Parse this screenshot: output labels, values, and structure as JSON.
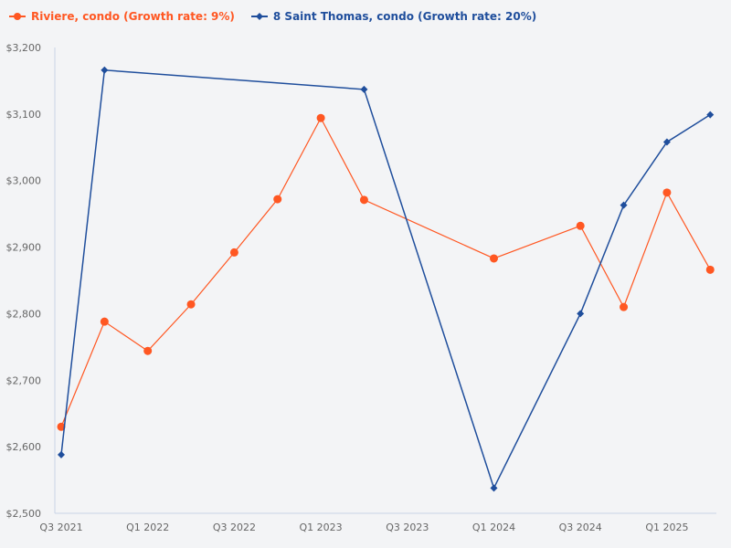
{
  "chart_data": {
    "type": "line",
    "title": "",
    "xlabel": "",
    "ylabel": "",
    "ylim": [
      2500,
      3200
    ],
    "yticks": [
      2500,
      2600,
      2700,
      2800,
      2900,
      3000,
      3100,
      3200
    ],
    "ytick_labels": [
      "$2,500",
      "$2,600",
      "$2,700",
      "$2,800",
      "$2,900",
      "$3,000",
      "$3,100",
      "$3,200"
    ],
    "x": [
      "Q3 2021",
      "Q4 2021",
      "Q1 2022",
      "Q2 2022",
      "Q3 2022",
      "Q4 2022",
      "Q1 2023",
      "Q2 2023",
      "Q3 2023",
      "Q4 2023",
      "Q1 2024",
      "Q2 2024",
      "Q3 2024",
      "Q4 2024",
      "Q1 2025",
      "Q2 2025"
    ],
    "xtick_labels": [
      "Q3 2021",
      "Q1 2022",
      "Q3 2022",
      "Q1 2023",
      "Q3 2023",
      "Q1 2024",
      "Q3 2024",
      "Q1 2025"
    ],
    "grid": false,
    "legend_position": "top-left",
    "series": [
      {
        "name": "Riviere, condo (Growth rate: 9%)",
        "color": "#ff5722",
        "marker": "circle",
        "points": [
          {
            "x": "Q3 2021",
            "y": 2630
          },
          {
            "x": "Q4 2021",
            "y": 2788
          },
          {
            "x": "Q1 2022",
            "y": 2744
          },
          {
            "x": "Q2 2022",
            "y": 2814
          },
          {
            "x": "Q3 2022",
            "y": 2892
          },
          {
            "x": "Q4 2022",
            "y": 2972
          },
          {
            "x": "Q1 2023",
            "y": 3094
          },
          {
            "x": "Q2 2023",
            "y": 2971
          },
          {
            "x": "Q1 2024",
            "y": 2883
          },
          {
            "x": "Q3 2024",
            "y": 2932
          },
          {
            "x": "Q4 2024",
            "y": 2810
          },
          {
            "x": "Q1 2025",
            "y": 2982
          },
          {
            "x": "Q2 2025",
            "y": 2866
          }
        ]
      },
      {
        "name": "8 Saint Thomas, condo (Growth rate: 20%)",
        "color": "#1f4e9c",
        "marker": "diamond",
        "points": [
          {
            "x": "Q3 2021",
            "y": 2588
          },
          {
            "x": "Q4 2021",
            "y": 3166
          },
          {
            "x": "Q2 2023",
            "y": 3137
          },
          {
            "x": "Q1 2024",
            "y": 2538
          },
          {
            "x": "Q3 2024",
            "y": 2800
          },
          {
            "x": "Q4 2024",
            "y": 2963
          },
          {
            "x": "Q1 2025",
            "y": 3058
          },
          {
            "x": "Q2 2025",
            "y": 3099
          }
        ]
      }
    ]
  },
  "legend": {
    "items": [
      {
        "label": "Riviere, condo (Growth rate: 9%)",
        "color": "#ff5722",
        "icon": "circle-marker-icon"
      },
      {
        "label": "8 Saint Thomas, condo (Growth rate: 20%)",
        "color": "#1f4e9c",
        "icon": "diamond-marker-icon"
      }
    ]
  },
  "colors": {
    "background": "#f3f4f6",
    "axis": "#c8d4e6",
    "tick_text": "#666666"
  }
}
